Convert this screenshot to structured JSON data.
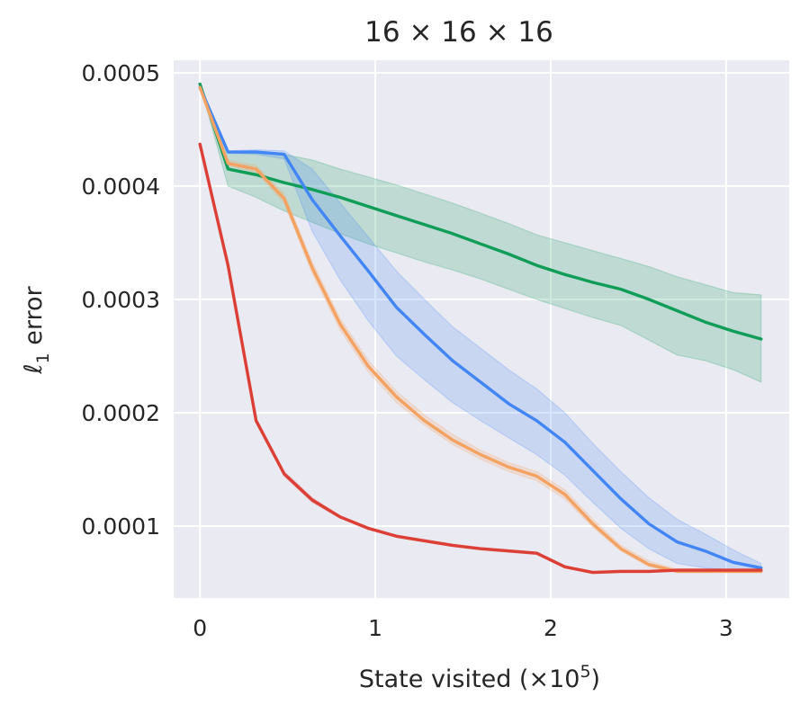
{
  "chart_data": {
    "type": "line",
    "title": "16 × 16 × 16",
    "xlabel": "State visited (×10",
    "xlabel_sup": "5",
    "xlabel_end": ")",
    "ylabel": "ℓ",
    "ylabel_sub": "1",
    "ylabel_rest": " error",
    "xlim": [
      -0.15,
      3.36
    ],
    "ylim": [
      3.65e-05,
      0.000511
    ],
    "xticks": [
      0,
      1,
      2,
      3
    ],
    "xtick_labels": [
      "0",
      "1",
      "2",
      "3"
    ],
    "yticks": [
      0.0001,
      0.0002,
      0.0003,
      0.0004,
      0.0005
    ],
    "ytick_labels": [
      "0.0001",
      "0.0002",
      "0.0003",
      "0.0004",
      "0.0005"
    ],
    "grid": true,
    "x": [
      0,
      0.16,
      0.32,
      0.48,
      0.64,
      0.8,
      0.96,
      1.12,
      1.28,
      1.44,
      1.6,
      1.76,
      1.92,
      2.08,
      2.24,
      2.4,
      2.56,
      2.72,
      2.88,
      3.04,
      3.2
    ],
    "series": [
      {
        "color": "#dc3f35",
        "values": [
          0.000437,
          0.00033,
          0.000193,
          0.000146,
          0.000123,
          0.000108,
          9.8e-05,
          9.1e-05,
          8.7e-05,
          8.3e-05,
          8e-05,
          7.8e-05,
          7.6e-05,
          6.4e-05,
          5.9e-05,
          6e-05,
          6e-05,
          6.1e-05,
          6.1e-05,
          6.1e-05,
          6.1e-05
        ],
        "lower": [
          0.000437,
          0.000329,
          0.000191,
          0.000144,
          0.000121,
          0.000107,
          9.7e-05,
          9e-05,
          8.6e-05,
          8.2e-05,
          7.9e-05,
          7.7e-05,
          7.5e-05,
          6.3e-05,
          5.8e-05,
          5.9e-05,
          5.9e-05,
          6e-05,
          6e-05,
          6e-05,
          6e-05
        ],
        "upper": [
          0.000437,
          0.000331,
          0.000195,
          0.000148,
          0.000125,
          0.000109,
          9.9e-05,
          9.2e-05,
          8.8e-05,
          8.4e-05,
          8.1e-05,
          7.9e-05,
          7.7e-05,
          6.5e-05,
          6e-05,
          6.1e-05,
          6.1e-05,
          6.2e-05,
          6.2e-05,
          6.2e-05,
          6.2e-05
        ]
      },
      {
        "color": "#f4a261",
        "values": [
          0.000487,
          0.00042,
          0.000415,
          0.000389,
          0.000328,
          0.000278,
          0.000241,
          0.000214,
          0.000193,
          0.000176,
          0.000163,
          0.000152,
          0.000144,
          0.000128,
          0.000102,
          8e-05,
          6.6e-05,
          6e-05,
          6e-05,
          6e-05,
          6e-05
        ],
        "lower": [
          0.000487,
          0.000418,
          0.000412,
          0.000385,
          0.000323,
          0.000273,
          0.000236,
          0.000209,
          0.000189,
          0.000172,
          0.000159,
          0.000148,
          0.00014,
          0.000124,
          9.9e-05,
          7.8e-05,
          6.4e-05,
          5.9e-05,
          5.9e-05,
          5.9e-05,
          5.9e-05
        ],
        "upper": [
          0.000487,
          0.000423,
          0.000418,
          0.000393,
          0.000333,
          0.000283,
          0.000246,
          0.000219,
          0.000198,
          0.000181,
          0.000167,
          0.000156,
          0.000148,
          0.000132,
          0.000106,
          8.3e-05,
          6.9e-05,
          6.2e-05,
          6.2e-05,
          6.2e-05,
          6.2e-05
        ]
      },
      {
        "color": "#4285f4",
        "values": [
          0.000487,
          0.00043,
          0.00043,
          0.000428,
          0.000388,
          0.000356,
          0.000325,
          0.000293,
          0.000269,
          0.000246,
          0.000227,
          0.000208,
          0.000193,
          0.000174,
          0.000149,
          0.000124,
          0.000102,
          8.6e-05,
          7.8e-05,
          6.8e-05,
          6.3e-05
        ],
        "lower": [
          0.000487,
          0.000429,
          0.000428,
          0.000424,
          0.00036,
          0.000317,
          0.000281,
          0.00025,
          0.000229,
          0.000209,
          0.000193,
          0.000178,
          0.000163,
          0.000145,
          0.000121,
          9.8e-05,
          8e-05,
          6.7e-05,
          6.3e-05,
          6.1e-05,
          6e-05
        ],
        "upper": [
          0.000487,
          0.000431,
          0.000432,
          0.000431,
          0.000415,
          0.000385,
          0.000355,
          0.000325,
          0.0003,
          0.000276,
          0.000257,
          0.000238,
          0.000221,
          0.0002,
          0.000173,
          0.000148,
          0.000125,
          0.000106,
          9.3e-05,
          7.9e-05,
          6.7e-05
        ]
      },
      {
        "color": "#0f9d58",
        "values": [
          0.00049,
          0.000415,
          0.00041,
          0.000403,
          0.000397,
          0.00039,
          0.000382,
          0.000374,
          0.000366,
          0.000358,
          0.000349,
          0.00034,
          0.00033,
          0.000322,
          0.000315,
          0.000309,
          0.0003,
          0.00029,
          0.00028,
          0.000272,
          0.000265
        ],
        "lower": [
          0.00049,
          0.0004,
          0.00039,
          0.000378,
          0.000368,
          0.000358,
          0.000349,
          0.000341,
          0.000333,
          0.000326,
          0.000318,
          0.000309,
          0.0003,
          0.000292,
          0.000284,
          0.000277,
          0.000264,
          0.000251,
          0.000246,
          0.000238,
          0.000227
        ],
        "upper": [
          0.00049,
          0.00043,
          0.00043,
          0.000428,
          0.000423,
          0.000415,
          0.000408,
          0.000401,
          0.000393,
          0.000385,
          0.000376,
          0.000367,
          0.000357,
          0.00035,
          0.000343,
          0.000336,
          0.000329,
          0.00032,
          0.000313,
          0.000306,
          0.000304
        ]
      }
    ]
  }
}
